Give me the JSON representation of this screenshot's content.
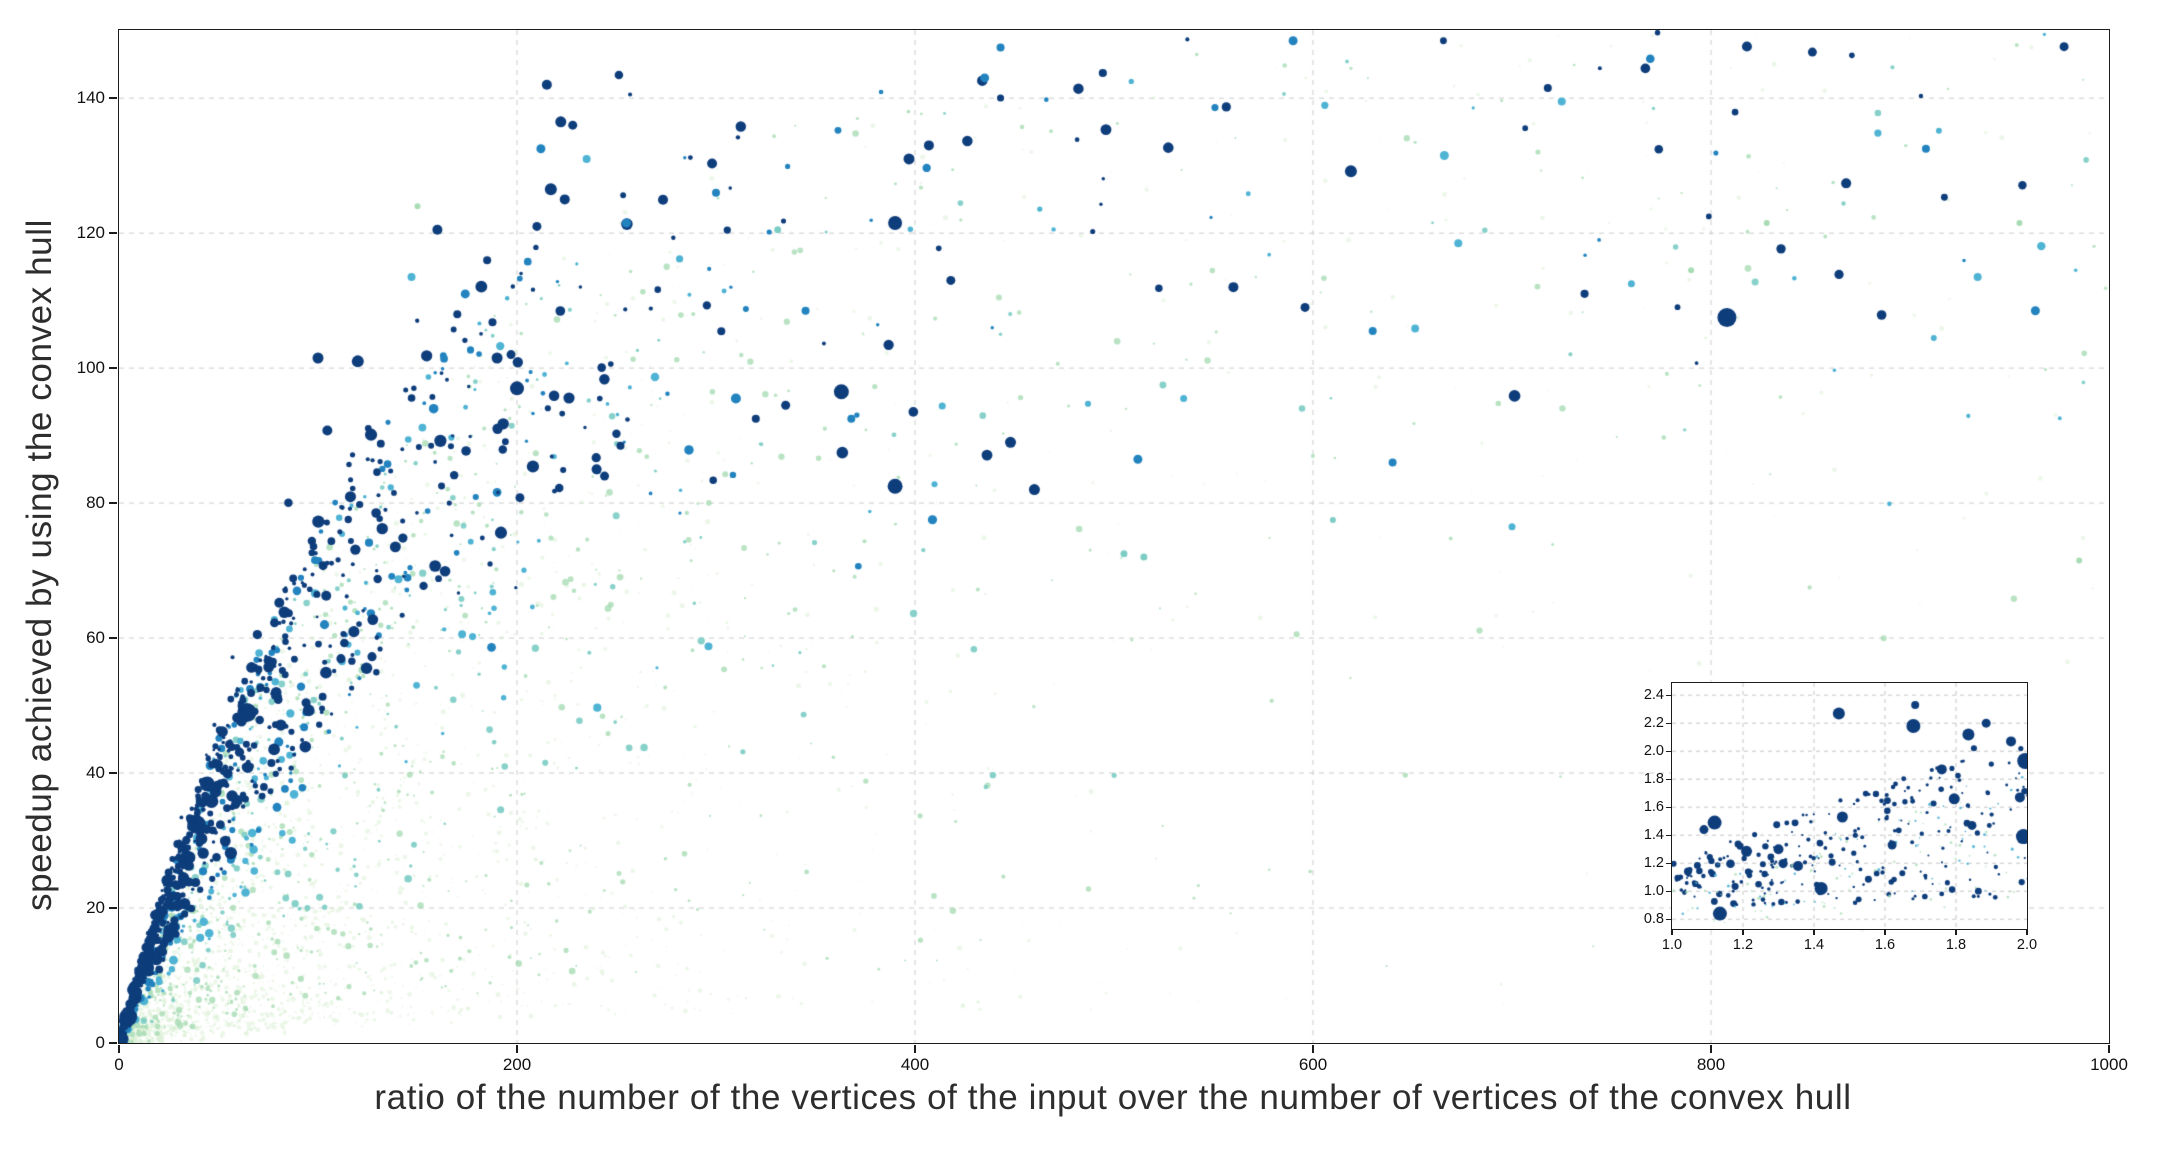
{
  "figure": {
    "background": "#ffffff"
  },
  "chart_data": {
    "type": "scatter",
    "title": "",
    "xlabel": "ratio of the number of the vertices of the input over the number of vertices of the convex hull",
    "ylabel": "speedup achieved by using the convex hull",
    "xlim": [
      0,
      1000
    ],
    "ylim": [
      0,
      150.1
    ],
    "grid": {
      "on": true,
      "style": "dashed",
      "color": "#cdcdcd"
    },
    "legend": "none",
    "colors": {
      "axis": "#1c1c1c",
      "tick_text": "#111111",
      "label_text": "#2d2d2d",
      "background": "#ffffff"
    },
    "palette": {
      "navy": "#0e3d7b",
      "blue": "#2283bf",
      "lightblue": "#4fb3d4",
      "teal": "#7ecdc5",
      "green": "#a8dcb4",
      "pale": "#d9efd4"
    },
    "xticks": {
      "values": [
        0,
        200,
        400,
        600,
        800,
        1000
      ],
      "labels": [
        "0",
        "200",
        "400",
        "600",
        "800",
        "1000"
      ]
    },
    "yticks": {
      "values": [
        0,
        20,
        40,
        60,
        80,
        100,
        120,
        140
      ],
      "labels": [
        "0",
        "20",
        "40",
        "60",
        "80",
        "100",
        "120",
        "140"
      ]
    },
    "envelope": {
      "formula": "y = scale*(1-exp(-x/tau))",
      "scale": 150,
      "tau": 145
    },
    "generated_series": [
      {
        "name": "pale-green-fine",
        "color": "pale",
        "count": 2600,
        "alpha": 0.5,
        "seed": 11,
        "x": {
          "mean": 105,
          "max": 1000,
          "tailFrac": 0.08,
          "tailMin": 0,
          "tailMax": 1000
        },
        "f": {
          "min": 0.04,
          "max": 0.92,
          "pow": 1.7
        },
        "tailF": {
          "min": 0.35,
          "pow": 0.7
        },
        "r": {
          "min": 0.7,
          "max": 2.6,
          "pow": 2.0
        }
      },
      {
        "name": "light-green",
        "color": "green",
        "count": 700,
        "alpha": 0.8,
        "seed": 22,
        "x": {
          "mean": 165,
          "max": 1000,
          "tailFrac": 0.16,
          "tailMin": 0,
          "tailMax": 1000
        },
        "f": {
          "min": 0.08,
          "max": 0.95,
          "pow": 1.35
        },
        "tailF": {
          "min": 0.4,
          "pow": 0.75
        },
        "r": {
          "min": 1.0,
          "max": 3.4,
          "pow": 1.8
        }
      },
      {
        "name": "teal",
        "color": "teal",
        "count": 210,
        "alpha": 0.92,
        "seed": 33,
        "x": {
          "mean": 140,
          "max": 1000,
          "tailFrac": 0.1,
          "tailMin": 50,
          "tailMax": 1000
        },
        "f": {
          "min": 0.25,
          "max": 0.98,
          "pow": 1.1
        },
        "tailF": {
          "min": 0.45,
          "pow": 0.8
        },
        "r": {
          "min": 1.3,
          "max": 3.8,
          "pow": 1.5
        }
      },
      {
        "name": "light-blue",
        "color": "lightblue",
        "count": 170,
        "alpha": 1,
        "seed": 44,
        "x": {
          "mean": 115,
          "max": 1000,
          "tailFrac": 0.12,
          "tailMin": 80,
          "tailMax": 1000
        },
        "f": {
          "min": 0.4,
          "max": 1.02,
          "pow": 1.0
        },
        "tailF": {
          "min": 0.5,
          "pow": 0.7
        },
        "r": {
          "min": 1.5,
          "max": 4.4,
          "pow": 1.4
        }
      },
      {
        "name": "medium-blue",
        "color": "blue",
        "count": 170,
        "alpha": 1,
        "seed": 55,
        "x": {
          "mean": 100,
          "max": 1000,
          "tailFrac": 0.1,
          "tailMin": 100,
          "tailMax": 1000
        },
        "f": {
          "min": 0.5,
          "max": 1.03,
          "pow": 0.95
        },
        "tailF": {
          "min": 0.55,
          "pow": 0.7
        },
        "r": {
          "min": 1.6,
          "max": 4.8,
          "pow": 1.3
        },
        "boost": {
          "frac": 0.05,
          "mult": 1.12
        }
      },
      {
        "name": "navy",
        "color": "navy",
        "count": 520,
        "alpha": 1,
        "seed": 66,
        "x": {
          "mean": 80,
          "max": 1000,
          "tailFrac": 0.06,
          "tailMin": 150,
          "tailMax": 1000
        },
        "f": {
          "min": 0.6,
          "max": 1.04,
          "pow": 0.9
        },
        "tailF": {
          "min": 0.6,
          "pow": 0.7
        },
        "r": {
          "min": 1.7,
          "max": 6.2,
          "pow": 1.6
        },
        "boost": {
          "frac": 0.05,
          "mult": 1.16
        },
        "bigFrac": 0.04
      },
      {
        "name": "navy-spine",
        "color": "navy",
        "count": 280,
        "alpha": 1,
        "seed": 77,
        "x": {
          "mean": 30,
          "max": 130,
          "tailFrac": 0,
          "tailMin": 0,
          "tailMax": 0
        },
        "f": {
          "min": 0.85,
          "max": 1.06,
          "pow": 1.0
        },
        "r": {
          "min": 1.4,
          "max": 4.2,
          "pow": 1.3
        }
      }
    ],
    "feature_points": [
      [
        808,
        107.5,
        "navy",
        9.5
      ],
      [
        100,
        101.5,
        "navy",
        5.5
      ],
      [
        120,
        101,
        "navy",
        6
      ],
      [
        160,
        120.5,
        "navy",
        5
      ],
      [
        150,
        124,
        "green",
        3
      ],
      [
        147,
        113.5,
        "lightblue",
        4
      ],
      [
        174,
        111,
        "blue",
        4.5
      ],
      [
        170,
        108,
        "navy",
        4
      ],
      [
        185,
        116,
        "navy",
        4
      ],
      [
        190,
        101.5,
        "navy",
        5.5
      ],
      [
        197,
        102,
        "navy",
        4.5
      ],
      [
        200,
        97,
        "navy",
        7
      ],
      [
        215,
        142,
        "navy",
        5
      ],
      [
        212,
        132.5,
        "blue",
        4.5
      ],
      [
        222,
        136.5,
        "navy",
        5.5
      ],
      [
        228,
        136,
        "navy",
        4.5
      ],
      [
        217,
        126.5,
        "navy",
        6
      ],
      [
        224,
        125,
        "navy",
        5
      ],
      [
        210,
        121,
        "navy",
        4.5
      ],
      [
        235,
        131,
        "lightblue",
        4
      ],
      [
        240,
        85,
        "navy",
        5
      ],
      [
        244,
        84,
        "navy",
        4.5
      ],
      [
        252,
        88.5,
        "navy",
        4
      ],
      [
        255,
        121.5,
        "blue",
        4.5
      ],
      [
        300,
        126,
        "blue",
        4
      ],
      [
        331,
        120.5,
        "teal",
        3.5
      ],
      [
        310,
        95.5,
        "blue",
        5
      ],
      [
        320,
        92.5,
        "navy",
        4
      ],
      [
        335,
        94.5,
        "navy",
        4.5
      ],
      [
        363,
        96.5,
        "navy",
        7.5
      ],
      [
        345,
        108.5,
        "blue",
        4
      ],
      [
        390,
        121.5,
        "navy",
        7
      ],
      [
        397,
        131,
        "navy",
        5.5
      ],
      [
        407,
        133,
        "navy",
        5
      ],
      [
        390,
        82.5,
        "navy",
        7.5
      ],
      [
        418,
        113,
        "navy",
        4.5
      ],
      [
        435,
        143,
        "blue",
        4.5
      ],
      [
        443,
        147.5,
        "blue",
        4
      ],
      [
        448,
        89,
        "navy",
        5.5
      ],
      [
        460,
        82,
        "navy",
        5.5
      ],
      [
        512,
        86.5,
        "blue",
        4.5
      ],
      [
        505,
        72.5,
        "teal",
        3.5
      ],
      [
        515,
        72,
        "teal",
        3.5
      ],
      [
        560,
        112,
        "navy",
        5
      ],
      [
        590,
        148.5,
        "blue",
        4.5
      ],
      [
        596,
        109,
        "navy",
        4.5
      ],
      [
        630,
        105.5,
        "blue",
        4
      ],
      [
        610,
        77.5,
        "teal",
        3
      ],
      [
        666,
        131.5,
        "lightblue",
        4.5
      ],
      [
        673,
        118.5,
        "lightblue",
        4
      ],
      [
        718,
        141.5,
        "navy",
        4
      ],
      [
        725,
        139.5,
        "lightblue",
        4
      ],
      [
        700,
        76.5,
        "lightblue",
        3.5
      ],
      [
        760,
        112.5,
        "lightblue",
        3.5
      ],
      [
        790,
        114.5,
        "green",
        3
      ],
      [
        828,
        121.5,
        "green",
        3
      ],
      [
        908,
        132.5,
        "blue",
        4
      ],
      [
        934,
        113.5,
        "lightblue",
        4
      ],
      [
        963,
        108.5,
        "blue",
        4.5
      ],
      [
        955,
        121.5,
        "green",
        3
      ],
      [
        985,
        71.5,
        "green",
        3
      ],
      [
        640,
        86,
        "blue",
        4
      ],
      [
        535,
        95.5,
        "lightblue",
        3.5
      ],
      [
        368,
        92.5,
        "blue",
        4
      ]
    ],
    "inset": {
      "xlim": [
        1.0,
        2.0
      ],
      "ylim": [
        0.73,
        2.487
      ],
      "xticks": {
        "values": [
          1.0,
          1.2,
          1.4,
          1.6,
          1.8,
          2.0
        ],
        "labels": [
          "1.0",
          "1.2",
          "1.4",
          "1.6",
          "1.8",
          "2.0"
        ]
      },
      "yticks": {
        "values": [
          0.8,
          1.0,
          1.2,
          1.4,
          1.6,
          1.8,
          2.0,
          2.2,
          2.4
        ],
        "labels": [
          "0.8",
          "1.0",
          "1.2",
          "1.4",
          "1.6",
          "1.8",
          "2.0",
          "2.2",
          "2.4"
        ]
      },
      "grid": {
        "on": true,
        "style": "dashed",
        "color": "#c6c6c6"
      },
      "generated_series": [
        {
          "name": "inset-navy",
          "color": "navy",
          "count": 250,
          "alpha": 1,
          "seed": 101,
          "a": 0.52,
          "b": 0.52,
          "spread0": 0.16,
          "spread1": 0.45,
          "r": {
            "min": 1.0,
            "max": 3.6,
            "pow": 1.6
          },
          "bigFrac": 0.05,
          "bigMult": 1.9
        },
        {
          "name": "inset-lightblue",
          "color": "lightblue",
          "count": 55,
          "alpha": 0.9,
          "seed": 102,
          "a": 0.45,
          "b": 0.5,
          "spread0": 0.14,
          "spread1": 0.3,
          "r": {
            "min": 0.7,
            "max": 1.6,
            "pow": 1.2
          }
        },
        {
          "name": "inset-pale",
          "color": "green",
          "count": 75,
          "alpha": 0.75,
          "seed": 103,
          "a": 0.38,
          "b": 0.5,
          "spread0": 0.15,
          "spread1": 0.3,
          "r": {
            "min": 0.7,
            "max": 1.6,
            "pow": 1.2
          }
        }
      ],
      "feature_points": [
        [
          1.47,
          2.27,
          "navy",
          6
        ],
        [
          1.685,
          2.33,
          "navy",
          4
        ],
        [
          1.68,
          2.18,
          "navy",
          7
        ],
        [
          1.12,
          1.49,
          "navy",
          7
        ],
        [
          1.135,
          0.84,
          "navy",
          7
        ],
        [
          1.995,
          1.93,
          "navy",
          8
        ],
        [
          1.99,
          1.39,
          "navy",
          7.5
        ],
        [
          1.955,
          2.07,
          "navy",
          5
        ],
        [
          1.835,
          2.12,
          "navy",
          6
        ],
        [
          1.885,
          2.2,
          "navy",
          4.5
        ],
        [
          1.42,
          1.02,
          "navy",
          6.5
        ],
        [
          1.21,
          1.285,
          "navy",
          5.5
        ],
        [
          1.48,
          1.53,
          "navy",
          5.5
        ],
        [
          1.3,
          1.3,
          "navy",
          5
        ],
        [
          1.76,
          1.87,
          "navy",
          5
        ],
        [
          1.795,
          1.66,
          "navy",
          5.5
        ],
        [
          1.845,
          1.47,
          "navy",
          4.5
        ],
        [
          1.98,
          1.67,
          "navy",
          5
        ],
        [
          1.09,
          1.44,
          "navy",
          4.5
        ],
        [
          1.355,
          1.18,
          "navy",
          5
        ],
        [
          1.62,
          1.33,
          "navy",
          4.5
        ],
        [
          1.045,
          1.14,
          "navy",
          4
        ]
      ]
    }
  }
}
